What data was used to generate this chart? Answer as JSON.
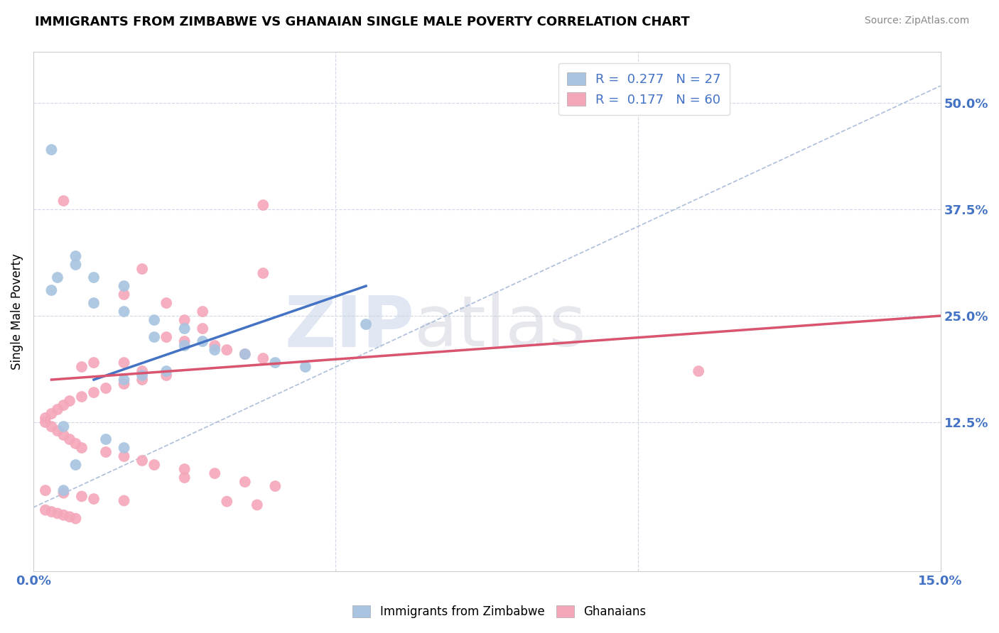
{
  "title": "IMMIGRANTS FROM ZIMBABWE VS GHANAIAN SINGLE MALE POVERTY CORRELATION CHART",
  "source": "Source: ZipAtlas.com",
  "ylabel": "Single Male Poverty",
  "watermark": "ZIPatlas",
  "legend": {
    "zimbabwe_R": 0.277,
    "zimbabwe_N": 27,
    "ghana_R": 0.177,
    "ghana_N": 60
  },
  "ylabel_ticks": [
    "50.0%",
    "37.5%",
    "25.0%",
    "12.5%"
  ],
  "ylabel_tick_vals": [
    0.5,
    0.375,
    0.25,
    0.125
  ],
  "xlim": [
    0.0,
    0.15
  ],
  "ylim": [
    -0.05,
    0.56
  ],
  "zimbabwe_color": "#a8c4e0",
  "zimbabwe_line_color": "#4472c4",
  "ghana_color": "#f4a7b9",
  "ghana_line_color": "#d9546e",
  "dashed_line_color": "#9fb3d4",
  "background_color": "#ffffff",
  "zimbabwe_points": [
    [
      0.003,
      0.445
    ],
    [
      0.007,
      0.32
    ],
    [
      0.004,
      0.295
    ],
    [
      0.003,
      0.28
    ],
    [
      0.007,
      0.31
    ],
    [
      0.01,
      0.295
    ],
    [
      0.015,
      0.285
    ],
    [
      0.01,
      0.265
    ],
    [
      0.015,
      0.255
    ],
    [
      0.02,
      0.245
    ],
    [
      0.025,
      0.235
    ],
    [
      0.02,
      0.225
    ],
    [
      0.028,
      0.22
    ],
    [
      0.025,
      0.215
    ],
    [
      0.03,
      0.21
    ],
    [
      0.035,
      0.205
    ],
    [
      0.055,
      0.24
    ],
    [
      0.04,
      0.195
    ],
    [
      0.045,
      0.19
    ],
    [
      0.022,
      0.185
    ],
    [
      0.018,
      0.18
    ],
    [
      0.015,
      0.175
    ],
    [
      0.005,
      0.12
    ],
    [
      0.012,
      0.105
    ],
    [
      0.015,
      0.095
    ],
    [
      0.007,
      0.075
    ],
    [
      0.005,
      0.045
    ]
  ],
  "ghana_points": [
    [
      0.005,
      0.385
    ],
    [
      0.038,
      0.38
    ],
    [
      0.018,
      0.305
    ],
    [
      0.038,
      0.3
    ],
    [
      0.015,
      0.275
    ],
    [
      0.022,
      0.265
    ],
    [
      0.028,
      0.255
    ],
    [
      0.025,
      0.245
    ],
    [
      0.028,
      0.235
    ],
    [
      0.022,
      0.225
    ],
    [
      0.025,
      0.22
    ],
    [
      0.03,
      0.215
    ],
    [
      0.032,
      0.21
    ],
    [
      0.035,
      0.205
    ],
    [
      0.038,
      0.2
    ],
    [
      0.015,
      0.195
    ],
    [
      0.01,
      0.195
    ],
    [
      0.008,
      0.19
    ],
    [
      0.018,
      0.185
    ],
    [
      0.022,
      0.18
    ],
    [
      0.018,
      0.175
    ],
    [
      0.015,
      0.17
    ],
    [
      0.012,
      0.165
    ],
    [
      0.01,
      0.16
    ],
    [
      0.008,
      0.155
    ],
    [
      0.006,
      0.15
    ],
    [
      0.005,
      0.145
    ],
    [
      0.004,
      0.14
    ],
    [
      0.003,
      0.135
    ],
    [
      0.002,
      0.13
    ],
    [
      0.002,
      0.125
    ],
    [
      0.003,
      0.12
    ],
    [
      0.004,
      0.115
    ],
    [
      0.005,
      0.11
    ],
    [
      0.006,
      0.105
    ],
    [
      0.007,
      0.1
    ],
    [
      0.008,
      0.095
    ],
    [
      0.012,
      0.09
    ],
    [
      0.015,
      0.085
    ],
    [
      0.018,
      0.08
    ],
    [
      0.02,
      0.075
    ],
    [
      0.025,
      0.07
    ],
    [
      0.03,
      0.065
    ],
    [
      0.025,
      0.06
    ],
    [
      0.035,
      0.055
    ],
    [
      0.04,
      0.05
    ],
    [
      0.002,
      0.045
    ],
    [
      0.005,
      0.042
    ],
    [
      0.008,
      0.038
    ],
    [
      0.01,
      0.035
    ],
    [
      0.015,
      0.033
    ],
    [
      0.032,
      0.032
    ],
    [
      0.037,
      0.028
    ],
    [
      0.002,
      0.022
    ],
    [
      0.003,
      0.02
    ],
    [
      0.004,
      0.018
    ],
    [
      0.005,
      0.016
    ],
    [
      0.006,
      0.014
    ],
    [
      0.007,
      0.012
    ],
    [
      0.11,
      0.185
    ]
  ],
  "zim_line_x": [
    0.01,
    0.055
  ],
  "zim_line_y": [
    0.175,
    0.285
  ],
  "gha_line_x": [
    0.003,
    0.15
  ],
  "gha_line_y": [
    0.175,
    0.25
  ],
  "dash_line_x": [
    0.0,
    0.15
  ],
  "dash_line_y": [
    0.025,
    0.52
  ]
}
